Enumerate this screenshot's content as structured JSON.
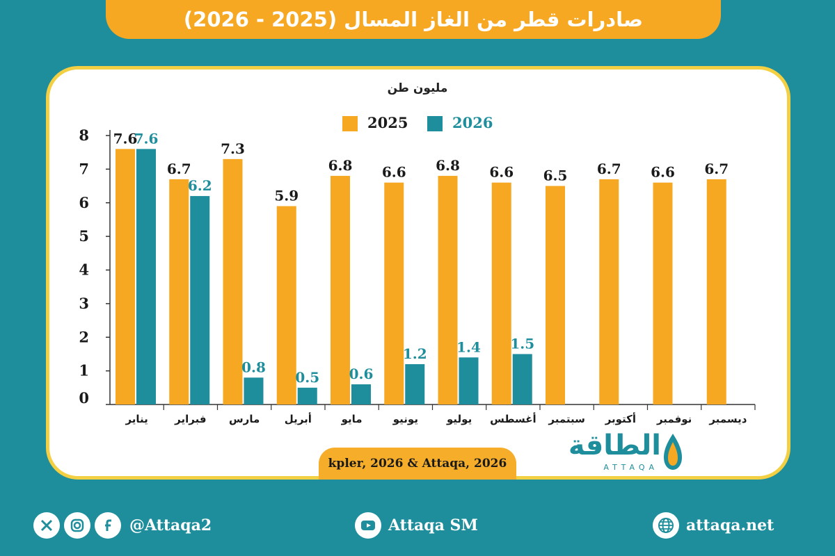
{
  "title": "صادرات قطر من الغاز المسال (2025 - 2026)",
  "unit": "مليون طن",
  "source": "kpler, 2026 & Attaqa, 2026",
  "brand": {
    "arabic": "الطاقة",
    "latin": "ATTAQA"
  },
  "footer": {
    "social_handle": "@Attaqa2",
    "youtube_handle": "Attaqa SM",
    "website": "attaqa.net"
  },
  "colors": {
    "series_2025": "#f7a823",
    "series_2026": "#1f8e9c",
    "background": "#1f8e9c",
    "card_border": "#f2cf43"
  },
  "chart_data": {
    "type": "bar",
    "categories": [
      "يناير",
      "فبراير",
      "مارس",
      "أبريل",
      "مايو",
      "يونيو",
      "يوليو",
      "أغسطس",
      "سبتمبر",
      "أكتوبر",
      "نوفمبر",
      "ديسمبر"
    ],
    "series": [
      {
        "name": "2025",
        "color": "#f7a823",
        "values": [
          7.6,
          6.7,
          7.3,
          5.9,
          6.8,
          6.6,
          6.8,
          6.6,
          6.5,
          6.7,
          6.6,
          6.7
        ]
      },
      {
        "name": "2026",
        "color": "#1f8e9c",
        "values": [
          7.6,
          6.2,
          0.8,
          0.5,
          0.6,
          1.2,
          1.4,
          1.5,
          null,
          null,
          null,
          null
        ]
      }
    ],
    "yticks": [
      0,
      1,
      2,
      3,
      4,
      5,
      6,
      7,
      8
    ],
    "ylim": [
      0,
      8
    ],
    "ylabel": "مليون طن",
    "legend_position": "top-center",
    "grid": false
  }
}
